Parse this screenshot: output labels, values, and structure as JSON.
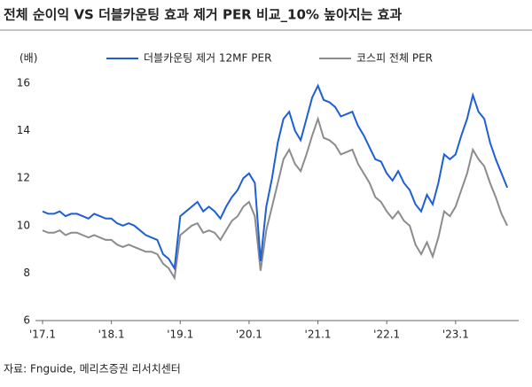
{
  "chart_data": {
    "type": "line",
    "title": "전체 순이익 VS 더블카운팅 효과 제거 PER 비교_10% 높아지는 효과",
    "y_label": "(배)",
    "source": "자료: Fnguide, 메리츠증권 리서치센터",
    "categories": [
      "'17.1",
      null,
      null,
      null,
      null,
      null,
      null,
      null,
      null,
      null,
      null,
      null,
      "'18.1",
      null,
      null,
      null,
      null,
      null,
      null,
      null,
      null,
      null,
      null,
      null,
      "'19.1",
      null,
      null,
      null,
      null,
      null,
      null,
      null,
      null,
      null,
      null,
      null,
      "'20.1",
      null,
      null,
      null,
      null,
      null,
      null,
      null,
      null,
      null,
      null,
      null,
      "'21.1",
      null,
      null,
      null,
      null,
      null,
      null,
      null,
      null,
      null,
      null,
      null,
      "'22.1",
      null,
      null,
      null,
      null,
      null,
      null,
      null,
      null,
      null,
      null,
      null,
      "'23.1",
      null,
      null,
      null,
      null,
      null,
      null,
      null,
      null,
      null
    ],
    "series": [
      {
        "name": "더블카운팅 제거 12MF PER",
        "color": "#1f5fd6",
        "values": [
          10.6,
          10.5,
          10.5,
          10.6,
          10.4,
          10.5,
          10.5,
          10.4,
          10.3,
          10.5,
          10.4,
          10.3,
          10.3,
          10.1,
          10.0,
          10.1,
          10.0,
          9.8,
          9.6,
          9.5,
          9.4,
          8.8,
          8.6,
          8.2,
          10.4,
          10.6,
          10.8,
          11.0,
          10.6,
          10.8,
          10.6,
          10.3,
          10.8,
          11.2,
          11.5,
          12.0,
          12.2,
          11.8,
          8.5,
          10.8,
          12.0,
          13.5,
          14.5,
          14.8,
          14.0,
          13.6,
          14.5,
          15.4,
          15.9,
          15.3,
          15.2,
          15.0,
          14.6,
          14.7,
          14.8,
          14.2,
          13.8,
          13.3,
          12.8,
          12.7,
          12.2,
          11.9,
          12.3,
          11.8,
          11.5,
          10.9,
          10.6,
          11.3,
          10.9,
          11.8,
          13.0,
          12.8,
          13.0,
          13.8,
          14.5,
          15.5,
          14.8,
          14.5,
          13.5,
          12.8,
          12.2,
          11.6
        ]
      },
      {
        "name": "코스피 전체 PER",
        "color": "#8c8c8c",
        "values": [
          9.8,
          9.7,
          9.7,
          9.8,
          9.6,
          9.7,
          9.7,
          9.6,
          9.5,
          9.6,
          9.5,
          9.4,
          9.4,
          9.2,
          9.1,
          9.2,
          9.1,
          9.0,
          8.9,
          8.9,
          8.8,
          8.4,
          8.2,
          7.8,
          9.6,
          9.8,
          10.0,
          10.1,
          9.7,
          9.8,
          9.7,
          9.4,
          9.8,
          10.2,
          10.4,
          10.8,
          11.0,
          10.4,
          8.1,
          9.8,
          10.8,
          11.8,
          12.8,
          13.2,
          12.6,
          12.3,
          13.0,
          13.8,
          14.5,
          13.7,
          13.6,
          13.4,
          13.0,
          13.1,
          13.2,
          12.6,
          12.2,
          11.8,
          11.2,
          11.0,
          10.6,
          10.3,
          10.6,
          10.2,
          10.0,
          9.2,
          8.8,
          9.3,
          8.7,
          9.5,
          10.6,
          10.4,
          10.8,
          11.5,
          12.2,
          13.2,
          12.8,
          12.5,
          11.8,
          11.2,
          10.5,
          10.0
        ]
      }
    ],
    "ylim": [
      6,
      16
    ],
    "yticks": [
      6,
      8,
      10,
      12,
      14,
      16
    ],
    "grid": false
  }
}
